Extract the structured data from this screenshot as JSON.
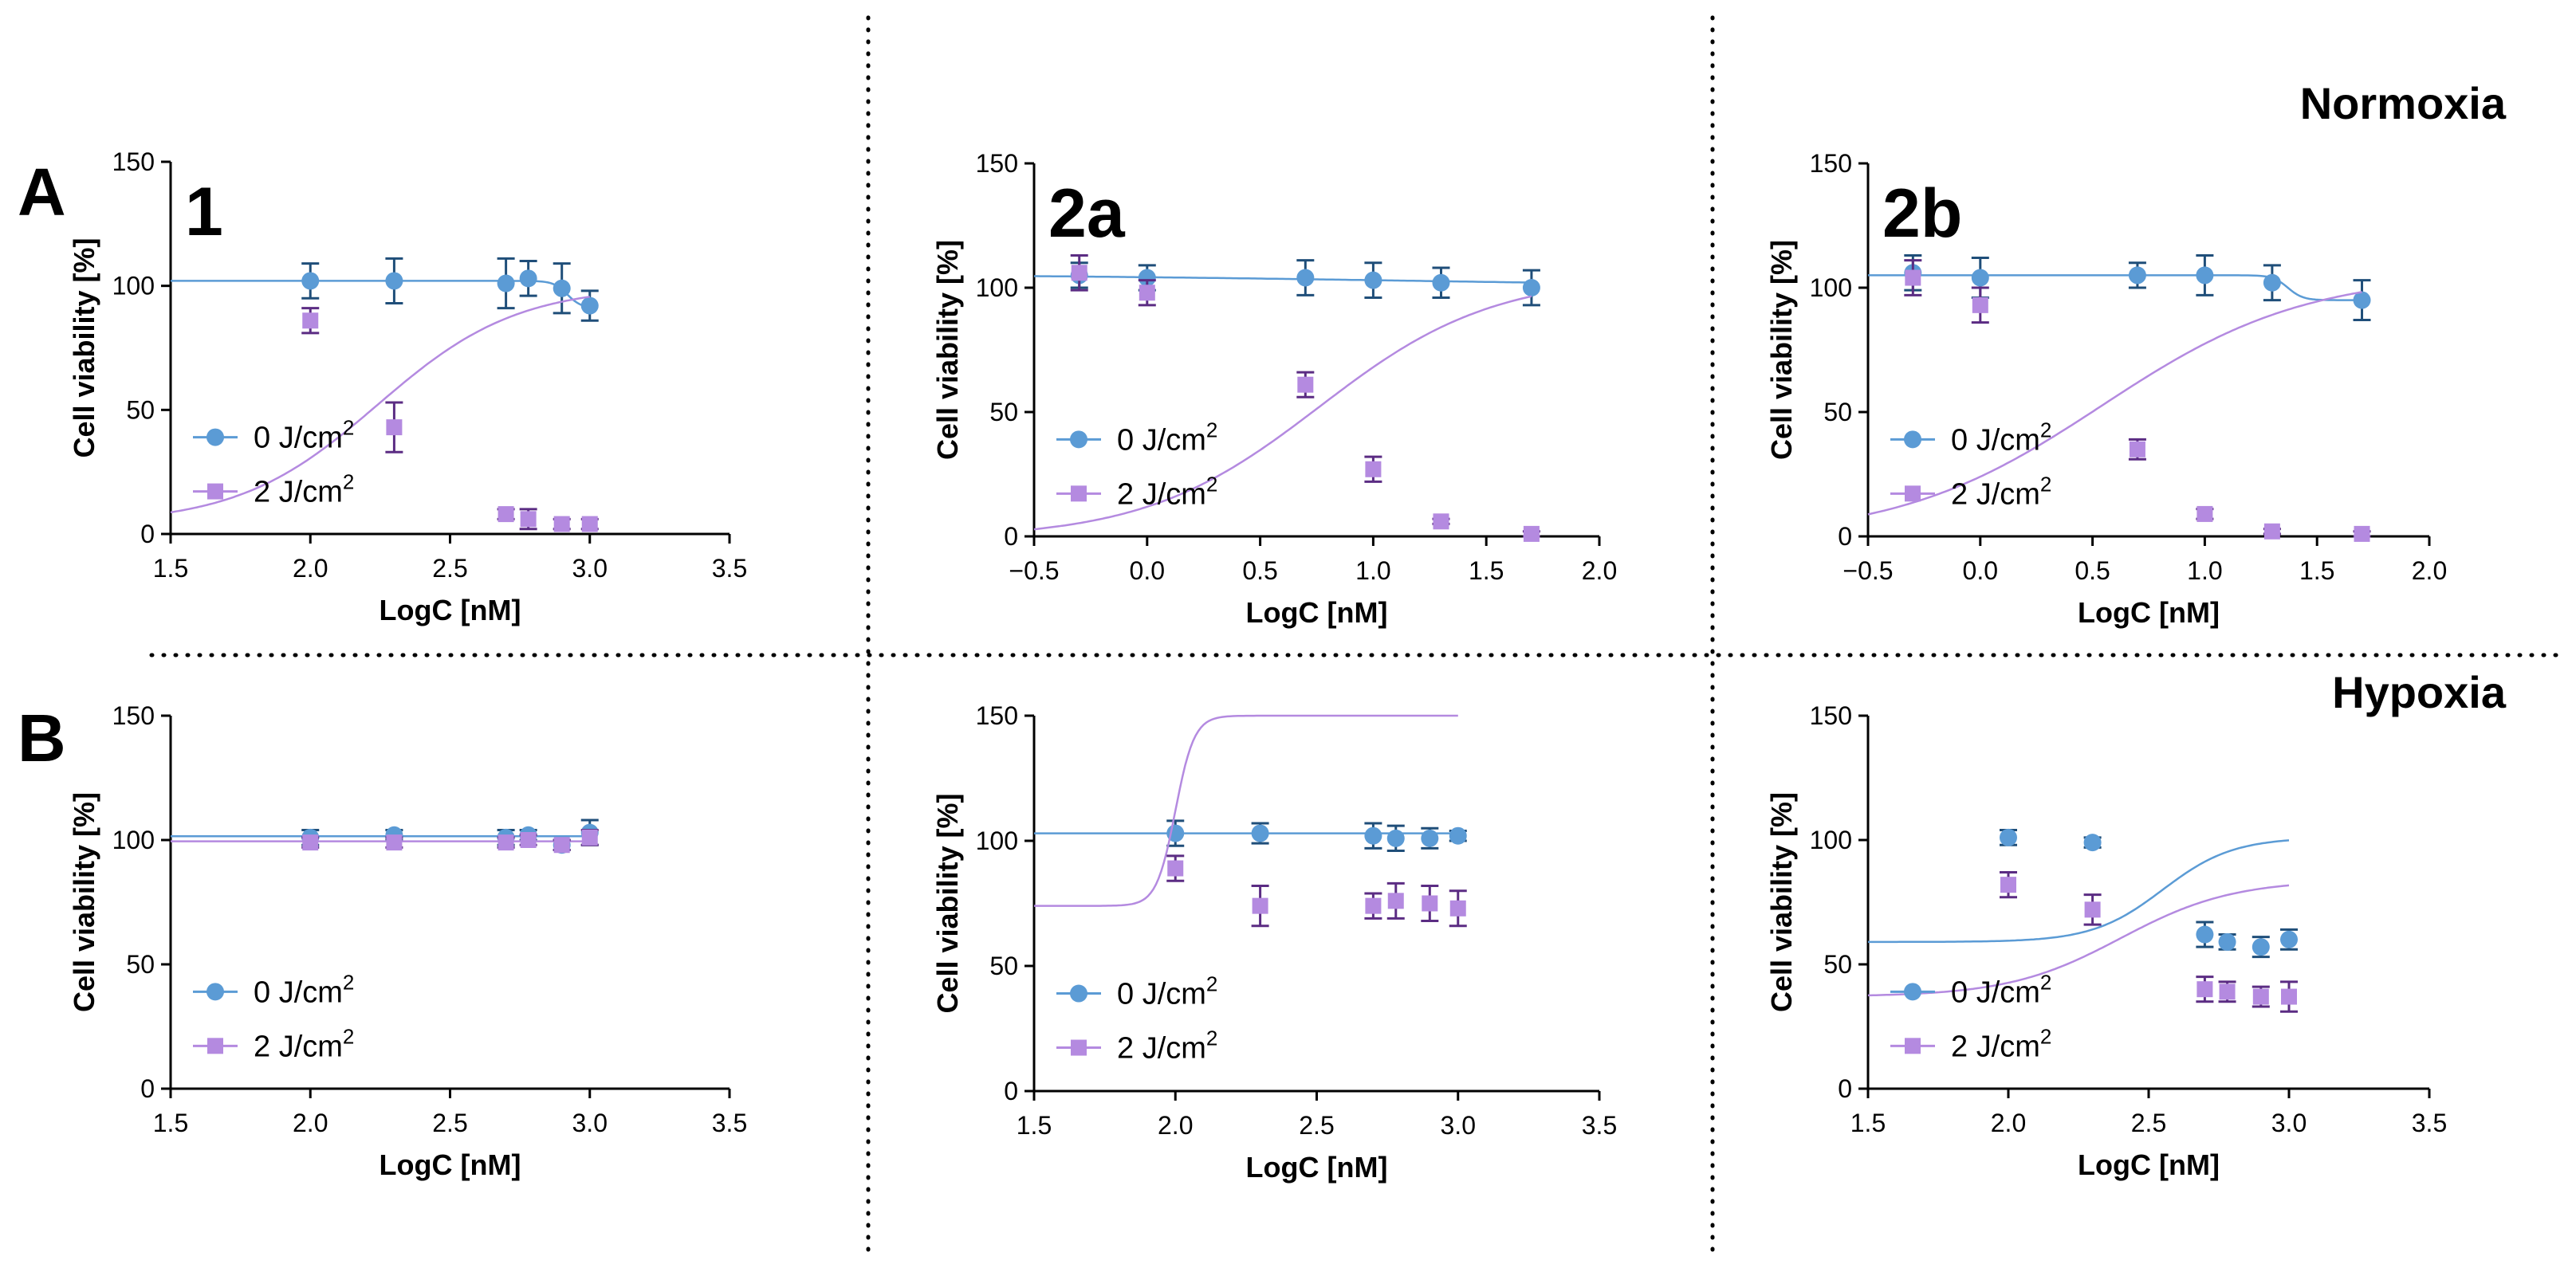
{
  "figure": {
    "sections": [
      "A",
      "B"
    ],
    "conditions": [
      "Normoxia",
      "Hypoxia"
    ]
  },
  "colors": {
    "series_0": "#5b9bd5",
    "series_0_errorbar": "#1f4e79",
    "series_2": "#b48ae0",
    "series_2_errorbar": "#5b2c83",
    "divider": "#000000"
  },
  "legend": {
    "series_0_base": "0 J/cm",
    "series_2_base": "2 J/cm",
    "superscript": "2"
  },
  "chart_data": [
    {
      "type": "scatter",
      "row": "Normoxia",
      "panel_label": "1",
      "xlabel": "LogC [nM]",
      "ylabel": "Cell viability [%]",
      "xlim": [
        1.5,
        3.5
      ],
      "ylim": [
        0,
        150
      ],
      "xticks": [
        "1.5",
        "2.0",
        "2.5",
        "3.0",
        "3.5"
      ],
      "yticks": [
        "0",
        "50",
        "100",
        "150"
      ],
      "series": [
        {
          "name": "0 J/cm2",
          "x": [
            2.0,
            2.3,
            2.7,
            2.78,
            2.9,
            3.0
          ],
          "y": [
            102,
            102,
            101,
            103,
            99,
            92
          ],
          "err": [
            7,
            9,
            10,
            7,
            10,
            6
          ],
          "fit": [
            1.5,
            102,
            91,
            2.92,
            40
          ]
        },
        {
          "name": "2 J/cm2",
          "x": [
            2.0,
            2.3,
            2.7,
            2.78,
            2.9,
            3.0
          ],
          "y": [
            86,
            43,
            8,
            6,
            4,
            4
          ],
          "err": [
            5,
            10,
            2,
            4,
            2,
            2
          ],
          "fit": [
            1.5,
            100,
            4,
            2.24,
            -4
          ]
        }
      ]
    },
    {
      "type": "scatter",
      "row": "Normoxia",
      "panel_label": "2a",
      "xlabel": "LogC [nM]",
      "ylabel": "Cell viability [%]",
      "xlim": [
        -0.5,
        2.0
      ],
      "ylim": [
        0,
        150
      ],
      "xticks": [
        "−0.5",
        "0.0",
        "0.5",
        "1.0",
        "1.5",
        "2.0"
      ],
      "yticks": [
        "0",
        "50",
        "100",
        "150"
      ],
      "series": [
        {
          "name": "0 J/cm2",
          "x": [
            -0.3,
            0.0,
            0.7,
            1.0,
            1.3,
            1.7
          ],
          "y": [
            105,
            104,
            104,
            103,
            102,
            100
          ],
          "err": [
            5,
            5,
            7,
            7,
            6,
            7
          ],
          "fit": [
            -0.5,
            105.5,
            100,
            1.2,
            1
          ]
        },
        {
          "name": "2 J/cm2",
          "x": [
            -0.3,
            0.0,
            0.7,
            1.0,
            1.3,
            1.7
          ],
          "y": [
            106,
            98,
            61,
            27,
            6,
            1
          ],
          "err": [
            7,
            5,
            5,
            5,
            1,
            1
          ],
          "fit": [
            -0.5,
            105,
            -1,
            0.76,
            -2.6
          ]
        }
      ]
    },
    {
      "type": "scatter",
      "row": "Normoxia",
      "panel_label": "2b",
      "xlabel": "LogC [nM]",
      "ylabel": "Cell viability [%]",
      "xlim": [
        -0.5,
        2.0
      ],
      "ylim": [
        0,
        150
      ],
      "xticks": [
        "−0.5",
        "0.0",
        "0.5",
        "1.0",
        "1.5",
        "2.0"
      ],
      "yticks": [
        "0",
        "50",
        "100",
        "150"
      ],
      "series": [
        {
          "name": "0 J/cm2",
          "x": [
            -0.3,
            0.0,
            0.7,
            1.0,
            1.3,
            1.7
          ],
          "y": [
            106,
            104,
            105,
            105,
            102,
            95
          ],
          "err": [
            7,
            8,
            5,
            8,
            7,
            8
          ],
          "fit": [
            -0.5,
            105,
            95,
            1.37,
            30
          ]
        },
        {
          "name": "2 J/cm2",
          "x": [
            -0.3,
            0.0,
            0.7,
            1.0,
            1.3,
            1.7
          ],
          "y": [
            104,
            93,
            35,
            9,
            2,
            1
          ],
          "err": [
            7,
            7,
            4,
            2,
            1,
            1
          ],
          "fit": [
            -0.5,
            106,
            -1,
            0.54,
            -2.2
          ]
        }
      ]
    },
    {
      "type": "scatter",
      "row": "Hypoxia",
      "panel_label": "",
      "xlabel": "LogC [nM]",
      "ylabel": "Cell viability [%]",
      "xlim": [
        1.5,
        3.5
      ],
      "ylim": [
        0,
        150
      ],
      "xticks": [
        "1.5",
        "2.0",
        "2.5",
        "3.0",
        "3.5"
      ],
      "yticks": [
        "0",
        "50",
        "100",
        "150"
      ],
      "series": [
        {
          "name": "0 J/cm2",
          "x": [
            2.0,
            2.3,
            2.7,
            2.78,
            2.9,
            3.0
          ],
          "y": [
            101,
            102,
            101,
            102,
            98,
            103
          ],
          "err": [
            3,
            2,
            3,
            2,
            2,
            5
          ],
          "fit": [
            1.5,
            101.5,
            101.5,
            2.5,
            1
          ]
        },
        {
          "name": "2 J/cm2",
          "x": [
            2.0,
            2.3,
            2.7,
            2.78,
            2.9,
            3.0
          ],
          "y": [
            99,
            99,
            99,
            100,
            98,
            101
          ],
          "err": [
            2,
            2,
            2,
            2,
            2,
            3
          ],
          "fit": [
            1.5,
            99.5,
            99.5,
            2.5,
            1
          ]
        }
      ]
    },
    {
      "type": "scatter",
      "row": "Hypoxia",
      "panel_label": "",
      "xlabel": "LogC [nM]",
      "ylabel": "Cell viability [%]",
      "xlim": [
        1.5,
        3.5
      ],
      "ylim": [
        0,
        150
      ],
      "xticks": [
        "1.5",
        "2.0",
        "2.5",
        "3.0",
        "3.5"
      ],
      "yticks": [
        "0",
        "50",
        "100",
        "150"
      ],
      "series": [
        {
          "name": "0 J/cm2",
          "x": [
            2.0,
            2.3,
            2.7,
            2.78,
            2.9,
            3.0
          ],
          "y": [
            103,
            103,
            102,
            101,
            101,
            102
          ],
          "err": [
            5,
            4,
            5,
            5,
            4,
            2
          ],
          "fit": [
            1.5,
            103,
            103,
            2.5,
            1
          ]
        },
        {
          "name": "2 J/cm2",
          "x": [
            2.0,
            2.3,
            2.7,
            2.78,
            2.9,
            3.0
          ],
          "y": [
            89,
            74,
            74,
            76,
            75,
            73
          ],
          "err": [
            5,
            8,
            5,
            7,
            7,
            7
          ],
          "fit": [
            1.5,
            150,
            74,
            2.0,
            -30
          ]
        }
      ]
    },
    {
      "type": "scatter",
      "row": "Hypoxia",
      "panel_label": "",
      "xlabel": "LogC [nM]",
      "ylabel": "Cell viability [%]",
      "xlim": [
        1.5,
        3.5
      ],
      "ylim": [
        0,
        150
      ],
      "xticks": [
        "1.5",
        "2.0",
        "2.5",
        "3.0",
        "3.5"
      ],
      "yticks": [
        "0",
        "50",
        "100",
        "150"
      ],
      "series": [
        {
          "name": "0 J/cm2",
          "x": [
            2.0,
            2.3,
            2.7,
            2.78,
            2.9,
            3.0
          ],
          "y": [
            101,
            99,
            62,
            59,
            57,
            60
          ],
          "err": [
            3,
            2,
            5,
            3,
            4,
            4
          ],
          "fit": [
            1.5,
            101,
            59,
            2.55,
            -8
          ]
        },
        {
          "name": "2 J/cm2",
          "x": [
            2.0,
            2.3,
            2.7,
            2.78,
            2.9,
            3.0
          ],
          "y": [
            82,
            72,
            40,
            39,
            37,
            37
          ],
          "err": [
            5,
            6,
            5,
            4,
            4,
            6
          ],
          "fit": [
            1.5,
            84,
            37,
            2.4,
            -5
          ]
        }
      ]
    }
  ]
}
